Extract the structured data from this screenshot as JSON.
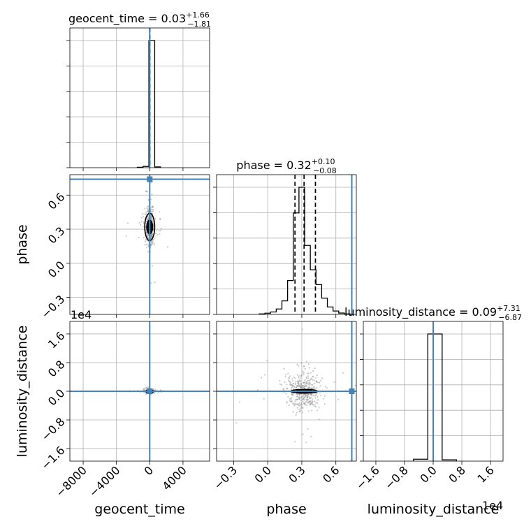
{
  "chart_data": {
    "type": "corner",
    "parameters": [
      "geocent_time",
      "phase",
      "luminosity_distance"
    ],
    "truth_color": "#4682b4",
    "truths": {
      "geocent_time": 0.0,
      "phase": 0.74,
      "luminosity_distance": 0.0
    },
    "offset_labels": {
      "luminosity_distance_y": "1e4",
      "luminosity_distance_x": "1e4"
    },
    "panels": [
      {
        "id": "hist-geocent_time",
        "kind": "hist",
        "param": "geocent_time",
        "title_name": "geocent_time",
        "median": "0.03",
        "plus": "+1.66",
        "minus": "−1.81",
        "xlim": [
          -9600,
          7200
        ],
        "xticks": [
          -8000,
          -4000,
          0,
          4000
        ],
        "bins": [
          [
            -1500,
            -800,
            0.003
          ],
          [
            -800,
            -100,
            0.01
          ],
          [
            -100,
            600,
            1.0
          ],
          [
            600,
            1300,
            0.006
          ]
        ],
        "quantiles": [
          -1.78,
          0.03,
          1.69
        ]
      },
      {
        "id": "hist-phase",
        "kind": "hist",
        "param": "phase",
        "title_name": "phase",
        "median": "0.32",
        "plus": "+0.10",
        "minus": "−0.08",
        "xlim": [
          -0.45,
          0.78
        ],
        "xticks": [
          -0.3,
          0.0,
          0.3,
          0.6
        ],
        "xtick_labels": [
          "−0.3",
          "0.0",
          "0.3",
          "0.6"
        ],
        "bins": [
          [
            -0.075,
            -0.025,
            0.004
          ],
          [
            -0.025,
            0.025,
            0.009
          ],
          [
            0.025,
            0.075,
            0.018
          ],
          [
            0.075,
            0.125,
            0.04
          ],
          [
            0.125,
            0.175,
            0.1
          ],
          [
            0.175,
            0.225,
            0.25
          ],
          [
            0.225,
            0.275,
            0.75
          ],
          [
            0.275,
            0.325,
            0.94
          ],
          [
            0.325,
            0.375,
            0.51
          ],
          [
            0.375,
            0.425,
            0.33
          ],
          [
            0.425,
            0.475,
            0.22
          ],
          [
            0.475,
            0.525,
            0.12
          ],
          [
            0.525,
            0.575,
            0.055
          ],
          [
            0.575,
            0.625,
            0.025
          ],
          [
            0.625,
            0.675,
            0.01
          ],
          [
            0.675,
            0.725,
            0.004
          ]
        ],
        "quantiles": [
          0.24,
          0.32,
          0.42
        ]
      },
      {
        "id": "hist-luminosity_distance",
        "kind": "hist",
        "param": "luminosity_distance",
        "title_name": "luminosity_distance",
        "median": "0.09",
        "plus": "+7.31",
        "minus": "−6.87",
        "xlim": [
          -1.95,
          1.95
        ],
        "xticks": [
          -1.6,
          -0.8,
          0.0,
          0.8,
          1.6
        ],
        "xtick_labels": [
          "−1.6",
          "−0.8",
          "0.0",
          "0.8",
          "1.6"
        ],
        "bins": [
          [
            -0.55,
            -0.15,
            0.015
          ],
          [
            -0.15,
            0.25,
            1.0
          ],
          [
            0.25,
            0.65,
            0.01
          ]
        ],
        "quantiles": [
          -0.0007,
          0.0,
          0.0007
        ]
      },
      {
        "id": "contour-phase-vs-geocent_time",
        "kind": "2d",
        "xparam": "geocent_time",
        "yparam": "phase",
        "xlim": [
          -9600,
          7200
        ],
        "ylim": [
          -0.45,
          0.78
        ],
        "xticks": [
          -8000,
          -4000,
          0,
          4000
        ],
        "yticks": [
          -0.3,
          0.0,
          0.3,
          0.6
        ],
        "ytick_labels": [
          "−0.3",
          "0.0",
          "0.3",
          "0.6"
        ],
        "center": [
          0,
          0.32
        ],
        "spread": [
          250,
          0.09
        ],
        "contour_halfwidths": [
          [
            600,
            0.12
          ],
          [
            350,
            0.06
          ]
        ]
      },
      {
        "id": "contour-luminosity_distance-vs-geocent_time",
        "kind": "2d",
        "xparam": "geocent_time",
        "yparam": "luminosity_distance",
        "xlim": [
          -9600,
          7200
        ],
        "ylim": [
          -1.95,
          1.95
        ],
        "xticks": [
          -8000,
          -4000,
          0,
          4000
        ],
        "xtick_labels": [
          "−8000",
          "−4000",
          "0",
          "4000"
        ],
        "yticks": [
          -1.6,
          -0.8,
          0.0,
          0.8,
          1.6
        ],
        "ytick_labels": [
          "−1.6",
          "−0.8",
          "0.0",
          "0.8",
          "1.6"
        ],
        "center": [
          0,
          0
        ],
        "spread": [
          250,
          0.02
        ],
        "contour_halfwidths": [
          [
            420,
            0.035
          ],
          [
            200,
            0.02
          ]
        ]
      },
      {
        "id": "contour-luminosity_distance-vs-phase",
        "kind": "2d",
        "xparam": "phase",
        "yparam": "luminosity_distance",
        "xlim": [
          -0.45,
          0.78
        ],
        "ylim": [
          -1.95,
          1.95
        ],
        "xticks": [
          -0.3,
          0.0,
          0.3,
          0.6
        ],
        "xtick_labels": [
          "−0.3",
          "0.0",
          "0.3",
          "0.6"
        ],
        "yticks": [
          -1.6,
          -0.8,
          0.0,
          0.8,
          1.6
        ],
        "center": [
          0.32,
          0.0
        ],
        "spread": [
          0.07,
          0.25
        ],
        "contour_halfwidths": [
          [
            0.12,
            0.05
          ],
          [
            0.07,
            0.03
          ]
        ]
      }
    ]
  }
}
